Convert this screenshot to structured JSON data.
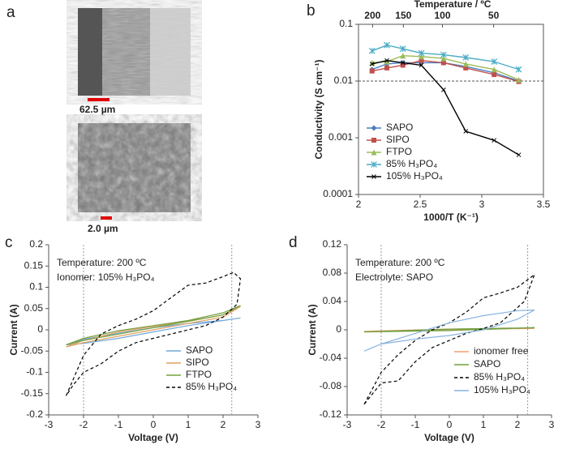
{
  "figure": {
    "panels": [
      "a",
      "b",
      "c",
      "d"
    ],
    "scale_bars": [
      "62.5 µm",
      "2.0 µm"
    ]
  },
  "chart_data": [
    {
      "type": "line",
      "log_y": true,
      "xlabel": "1000/T (K⁻¹)",
      "ylabel": "Conductivity (S cm⁻¹)",
      "x2label": "Temperature / ºC",
      "x": [
        2.11,
        2.23,
        2.36,
        2.51,
        2.69,
        2.87,
        3.1,
        3.3
      ],
      "xlim": [
        2,
        3.5
      ],
      "xticks": [
        2,
        2.5,
        3,
        3.5
      ],
      "x2ticks": [
        {
          "value": 2.114,
          "label": "200"
        },
        {
          "value": 2.364,
          "label": "150"
        },
        {
          "value": 2.681,
          "label": "100"
        },
        {
          "value": 3.096,
          "label": "50"
        }
      ],
      "ylim": [
        0.0001,
        0.1
      ],
      "yticks": [
        0.0001,
        0.001,
        0.01,
        0.1
      ],
      "hlines": [
        0.01
      ],
      "legend": "lower left",
      "series": [
        {
          "name": "SAPO",
          "color": "#4a7fc1",
          "marker": "diamond",
          "values": [
            0.016,
            0.02,
            0.021,
            0.021,
            0.021,
            0.018,
            0.014,
            0.01
          ]
        },
        {
          "name": "SIPO",
          "color": "#c0504d",
          "marker": "square",
          "values": [
            0.015,
            0.017,
            0.019,
            0.023,
            0.021,
            0.017,
            0.013,
            0.0098
          ]
        },
        {
          "name": "FTPO",
          "color": "#9bbb59",
          "marker": "triangle",
          "values": [
            0.021,
            0.022,
            0.028,
            0.027,
            0.025,
            0.02,
            0.016,
            0.0105
          ]
        },
        {
          "name": "85% H₃PO₄",
          "color": "#4bacc6",
          "marker": "star",
          "values": [
            0.034,
            0.043,
            0.037,
            0.031,
            0.029,
            0.026,
            0.022,
            0.016
          ]
        },
        {
          "name": "105% H₃PO₄",
          "color": "#000000",
          "marker": "x",
          "values": [
            0.02,
            0.023,
            0.021,
            0.019,
            0.007,
            0.0013,
            0.0009,
            0.0005
          ]
        }
      ]
    },
    {
      "type": "line",
      "xlabel": "Voltage (V)",
      "ylabel": "Current (A)",
      "annotations": [
        "Temperature: 200 ºC",
        "Ionomer: 105% H₃PO₄"
      ],
      "xlim": [
        -3,
        3
      ],
      "xticks": [
        -3,
        -2,
        -1,
        0,
        1,
        2,
        3
      ],
      "ylim": [
        -0.2,
        0.2
      ],
      "yticks": [
        -0.2,
        -0.15,
        -0.1,
        -0.05,
        0,
        0.05,
        0.1,
        0.15,
        0.2
      ],
      "vlines": [
        -2,
        2.25
      ],
      "legend": "lower right",
      "series": [
        {
          "name": "SAPO",
          "color": "#6fa8dc",
          "x": [
            -2.5,
            -2,
            -1,
            0,
            1,
            2,
            2.5,
            2,
            1,
            0,
            -1,
            -2,
            -2.5
          ],
          "values": [
            -0.035,
            -0.032,
            -0.02,
            -0.005,
            0.01,
            0.022,
            0.028,
            0.022,
            0.015,
            0.005,
            -0.008,
            -0.022,
            -0.035
          ]
        },
        {
          "name": "SIPO",
          "color": "#e0a060",
          "x": [
            -2.5,
            -2,
            -1,
            0,
            1,
            2,
            2.5,
            2,
            1,
            0,
            -1,
            -2,
            -2.5
          ],
          "values": [
            -0.04,
            -0.025,
            -0.005,
            0.008,
            0.02,
            0.035,
            0.055,
            0.03,
            0.015,
            0,
            -0.015,
            -0.03,
            -0.04
          ]
        },
        {
          "name": "FTPO",
          "color": "#77a040",
          "x": [
            -2.5,
            -2,
            -1,
            0,
            1,
            2,
            2.5,
            2,
            1,
            0,
            -1,
            -2,
            -2.5
          ],
          "values": [
            -0.035,
            -0.02,
            -0.002,
            0.01,
            0.022,
            0.04,
            0.057,
            0.035,
            0.02,
            0.005,
            -0.01,
            -0.025,
            -0.035
          ]
        },
        {
          "name": "85% H₃PO₄",
          "color": "#000000",
          "style": "dashed",
          "x": [
            -2.5,
            -2,
            -1.5,
            -1,
            -0.5,
            0,
            0.5,
            1,
            1.5,
            2,
            2.3,
            2.5,
            2.4,
            2,
            1.5,
            1,
            0.5,
            0,
            -0.5,
            -1,
            -1.5,
            -2,
            -2.3,
            -2.5
          ],
          "values": [
            -0.155,
            -0.06,
            -0.01,
            0.01,
            0.025,
            0.045,
            0.075,
            0.105,
            0.11,
            0.125,
            0.135,
            0.12,
            0.06,
            0.03,
            0.01,
            0,
            -0.01,
            -0.02,
            -0.03,
            -0.05,
            -0.08,
            -0.1,
            -0.13,
            -0.155
          ]
        }
      ]
    },
    {
      "type": "line",
      "xlabel": "Voltage (V)",
      "ylabel": "Current (A)",
      "annotations": [
        "Temperature: 200 ºC",
        "Electrolyte: SAPO"
      ],
      "xlim": [
        -3,
        3
      ],
      "xticks": [
        -3,
        -2,
        -1,
        0,
        1,
        2,
        3
      ],
      "ylim": [
        -0.12,
        0.12
      ],
      "yticks": [
        -0.12,
        -0.08,
        -0.04,
        0,
        0.04,
        0.08,
        0.12
      ],
      "vlines": [
        -2,
        2.3
      ],
      "legend": "lower right",
      "series": [
        {
          "name": "ionomer free",
          "color": "#f4a070",
          "x": [
            -2.5,
            0,
            2.5,
            0,
            -2.5
          ],
          "values": [
            -0.002,
            0,
            0.002,
            0.001,
            -0.002
          ]
        },
        {
          "name": "SAPO",
          "color": "#70a040",
          "x": [
            -2.5,
            0,
            2.5,
            0,
            -2.5
          ],
          "values": [
            -0.003,
            -0.001,
            0.003,
            0.001,
            -0.003
          ]
        },
        {
          "name": "85% H₃PO₄",
          "color": "#000000",
          "style": "dashed",
          "x": [
            -2.5,
            -2,
            -1.5,
            -1,
            -0.5,
            0,
            0.5,
            1,
            1.5,
            2,
            2.5,
            2.2,
            1.5,
            1,
            0.5,
            0,
            -0.5,
            -1,
            -1.5,
            -2,
            -2.5
          ],
          "values": [
            -0.105,
            -0.06,
            -0.035,
            -0.015,
            0,
            0.01,
            0.025,
            0.045,
            0.052,
            0.06,
            0.078,
            0.04,
            0.01,
            0.002,
            -0.005,
            -0.015,
            -0.025,
            -0.045,
            -0.072,
            -0.075,
            -0.105
          ]
        },
        {
          "name": "105% H₃PO₄",
          "color": "#8ab4e0",
          "x": [
            -2.5,
            -2,
            -1,
            0,
            1,
            2,
            2.5,
            2,
            1,
            0,
            -1,
            -2,
            -2.5
          ],
          "values": [
            -0.03,
            -0.02,
            -0.005,
            0.01,
            0.02,
            0.027,
            0.028,
            0.015,
            0,
            -0.008,
            -0.013,
            -0.02,
            -0.03
          ]
        }
      ]
    }
  ]
}
